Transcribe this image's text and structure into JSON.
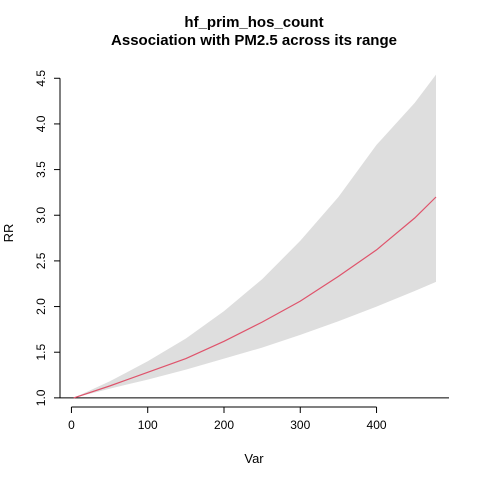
{
  "chart_data": {
    "type": "line",
    "title": "hf_prim_hos_count",
    "subtitle": "Association with PM2.5 across its range",
    "xlabel": "Var",
    "ylabel": "RR",
    "xlim": [
      -15,
      495
    ],
    "ylim": [
      0.9,
      4.7
    ],
    "x_ticks": [
      "0",
      "100",
      "200",
      "300",
      "400"
    ],
    "y_ticks": [
      "1.0",
      "1.5",
      "2.0",
      "2.5",
      "3.0",
      "3.5",
      "4.0",
      "4.5"
    ],
    "reference_line": 1.0,
    "colors": {
      "line": "#DF536B",
      "band": "#DEDEDE",
      "reference": "#000000"
    },
    "series": [
      {
        "x": [
          3,
          50,
          100,
          150,
          200,
          250,
          300,
          350,
          400,
          450,
          478
        ],
        "y": [
          1.0,
          1.13,
          1.28,
          1.43,
          1.62,
          1.83,
          2.06,
          2.33,
          2.62,
          2.97,
          3.2
        ],
        "lower": [
          1.0,
          1.1,
          1.2,
          1.31,
          1.43,
          1.55,
          1.69,
          1.84,
          2.0,
          2.17,
          2.27
        ],
        "upper": [
          1.0,
          1.18,
          1.4,
          1.65,
          1.95,
          2.3,
          2.72,
          3.2,
          3.77,
          4.23,
          4.54
        ]
      }
    ]
  }
}
